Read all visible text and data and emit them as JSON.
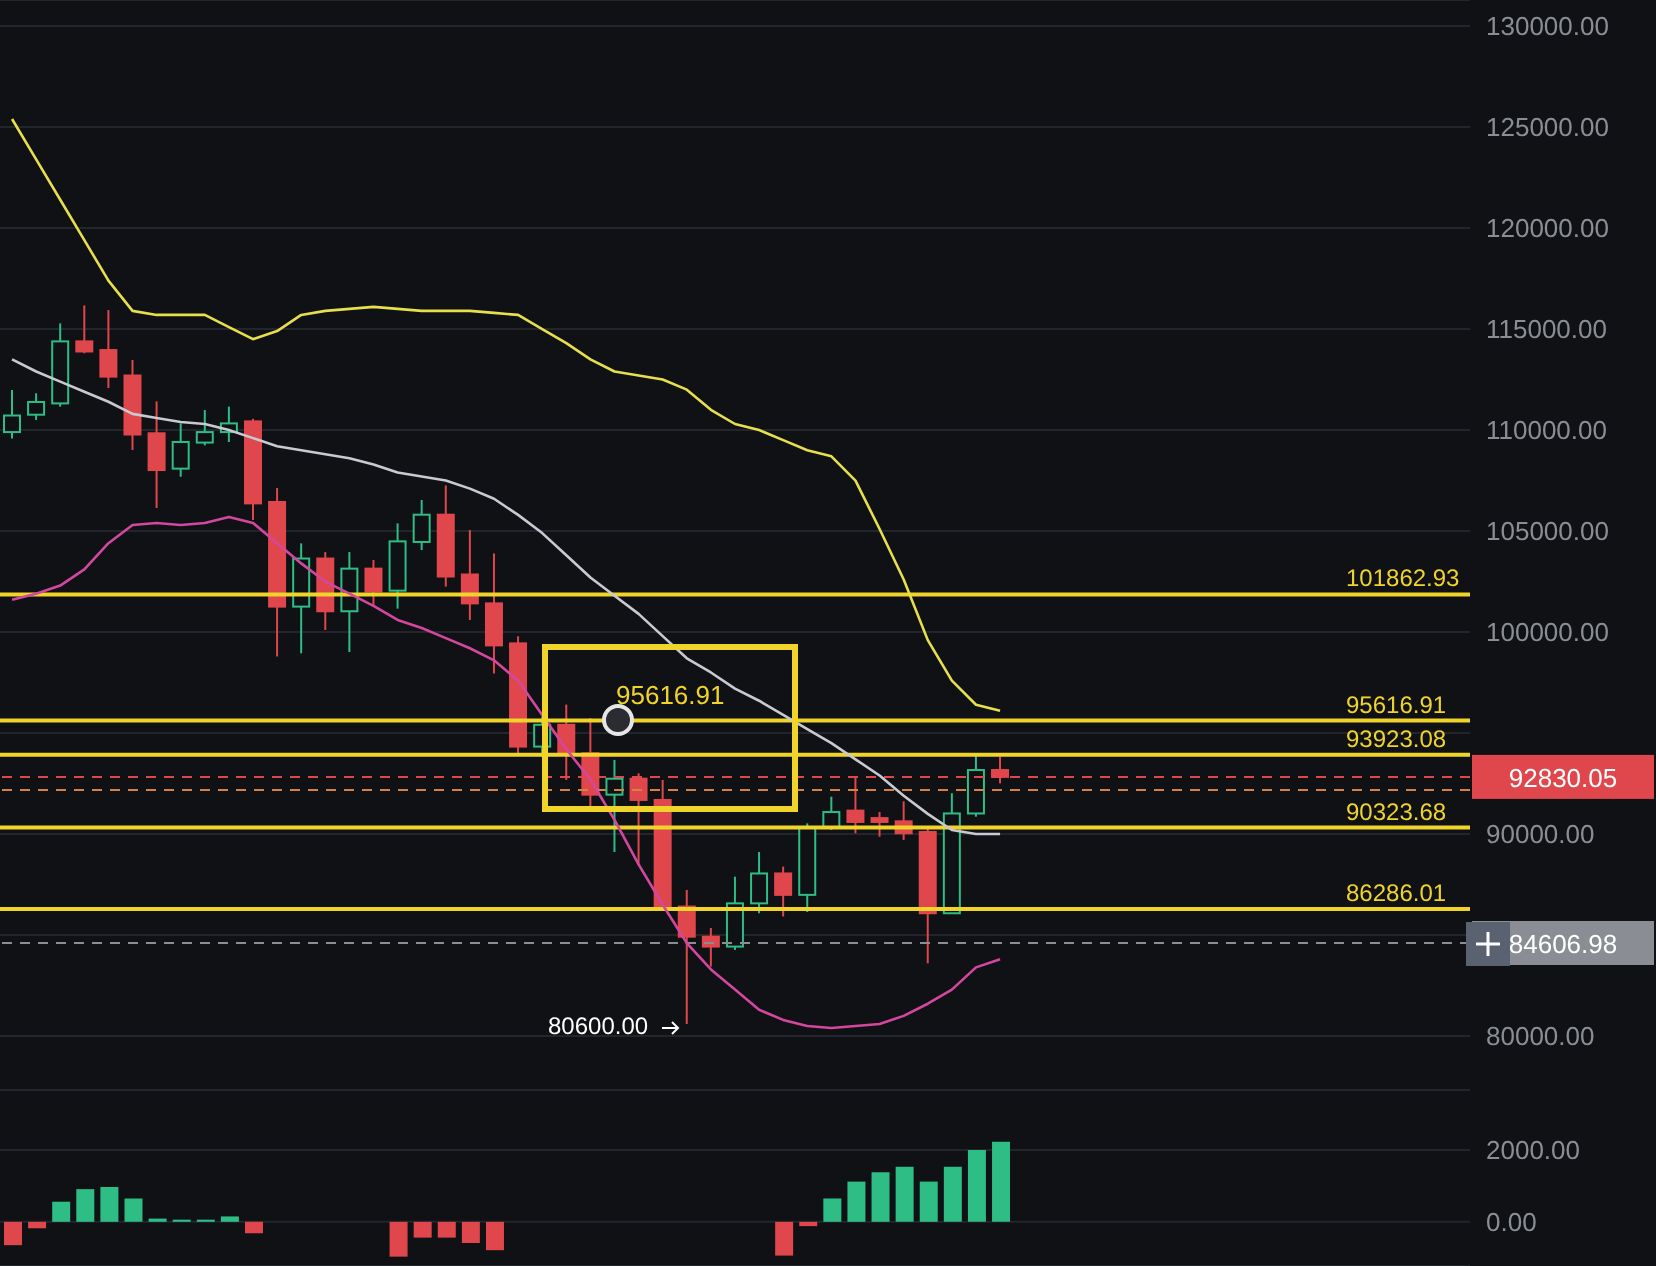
{
  "chart_data": [
    {
      "type": "candlestick",
      "categories": [
        null,
        null,
        null,
        null,
        null,
        null,
        null,
        null,
        null,
        null,
        null,
        null,
        null,
        null,
        null,
        null,
        null,
        null,
        null,
        null,
        null,
        null,
        null,
        null,
        null,
        null,
        null,
        null,
        null,
        null,
        null,
        null,
        null,
        null,
        null,
        null,
        null,
        null,
        null,
        null,
        null,
        null,
        null,
        null,
        null,
        null,
        null,
        null,
        null,
        null,
        null,
        null,
        null,
        null,
        null,
        null,
        null,
        null,
        null,
        null,
        null
      ],
      "ohlc": [
        [
          109900,
          111980,
          109580,
          110720
        ],
        [
          110760,
          111820,
          110500,
          111390
        ],
        [
          111320,
          115280,
          111160,
          114390
        ],
        [
          114390,
          116170,
          113800,
          113890
        ],
        [
          113960,
          115940,
          112080,
          112645
        ],
        [
          112700,
          113470,
          109010,
          109780
        ],
        [
          109840,
          111420,
          106140,
          108020
        ],
        [
          108090,
          110330,
          107690,
          109410
        ],
        [
          109380,
          110990,
          109240,
          109900
        ],
        [
          109900,
          111160,
          109410,
          110330
        ],
        [
          110430,
          110560,
          105550,
          106370
        ],
        [
          106440,
          107130,
          98790,
          101260
        ],
        [
          101260,
          104390,
          98950,
          103640
        ],
        [
          103640,
          103960,
          100100,
          101030
        ],
        [
          101030,
          103960,
          99010,
          103140
        ],
        [
          103140,
          103570,
          101260,
          102010
        ],
        [
          102050,
          105380,
          101160,
          104490
        ],
        [
          104460,
          106540,
          104060,
          105810
        ],
        [
          105810,
          107260,
          102250,
          102750
        ],
        [
          102850,
          105050,
          100600,
          101420
        ],
        [
          101420,
          103890,
          97950,
          99340
        ],
        [
          99440,
          99790,
          94000,
          94330
        ],
        [
          94330,
          95810,
          93830,
          95410
        ],
        [
          95410,
          96410,
          92680,
          93930
        ],
        [
          94000,
          95740,
          91090,
          91950
        ],
        [
          91950,
          93670,
          89110,
          92740
        ],
        [
          92740,
          93010,
          88450,
          91690
        ],
        [
          91690,
          92680,
          86300,
          86410
        ],
        [
          86410,
          87230,
          80600,
          84920
        ],
        [
          84920,
          85350,
          83440,
          84430
        ],
        [
          84430,
          87890,
          84260,
          86570
        ],
        [
          86570,
          89110,
          86080,
          88050
        ],
        [
          88050,
          88390,
          85920,
          86990
        ],
        [
          86990,
          90530,
          86140,
          90300
        ],
        [
          90300,
          91850,
          90200,
          91090
        ],
        [
          91160,
          92840,
          90040,
          90600
        ],
        [
          90790,
          91090,
          89870,
          90600
        ],
        [
          90630,
          91620,
          89710,
          90040
        ],
        [
          90100,
          90300,
          83600,
          86080
        ],
        [
          86080,
          92020,
          86080,
          91020
        ],
        [
          91020,
          93930,
          90860,
          93170
        ],
        [
          93170,
          93830,
          92510,
          92830.05
        ],
        null,
        null,
        null,
        null,
        null,
        null,
        null,
        null,
        null,
        null,
        null,
        null,
        null,
        null,
        null,
        null,
        null,
        null,
        null
      ],
      "series": [
        {
          "type": "line",
          "color": "#e8df4c",
          "values": [
            125400,
            123400,
            121400,
            119400,
            117400,
            115900,
            115700,
            115700,
            115700,
            115100,
            114500,
            114900,
            115700,
            115900,
            116000,
            116100,
            116000,
            115900,
            115900,
            115900,
            115800,
            115700,
            115000,
            114300,
            113500,
            112900,
            112700,
            112500,
            112000,
            111000,
            110300,
            110000,
            109500,
            109000,
            108700,
            107500,
            105100,
            102600,
            99600,
            97600,
            96400,
            96100,
            null,
            null,
            null,
            null,
            null,
            null,
            null,
            null,
            null,
            null,
            null,
            null,
            null,
            null,
            null,
            null,
            null,
            null,
            null
          ]
        },
        {
          "type": "line",
          "color": "#c9c9d1",
          "values": [
            113500,
            112900,
            112400,
            111900,
            111400,
            110800,
            110600,
            110400,
            110300,
            110000,
            109600,
            109200,
            109000,
            108800,
            108600,
            108300,
            107900,
            107700,
            107500,
            107100,
            106600,
            105800,
            104900,
            103800,
            102700,
            101800,
            100900,
            99800,
            98700,
            98000,
            97200,
            96600,
            95900,
            95200,
            94500,
            93700,
            92900,
            91900,
            91000,
            90200,
            90000,
            90000,
            null,
            null,
            null,
            null,
            null,
            null,
            null,
            null,
            null,
            null,
            null,
            null,
            null,
            null,
            null,
            null,
            null,
            null,
            null
          ]
        },
        {
          "type": "line",
          "color": "#d4479f",
          "values": [
            101600,
            101900,
            102300,
            103100,
            104400,
            105300,
            105400,
            105300,
            105400,
            105700,
            105400,
            104400,
            103400,
            102500,
            101900,
            101300,
            100600,
            100200,
            99700,
            99200,
            98600,
            97600,
            95900,
            94200,
            92700,
            90700,
            88500,
            86500,
            84600,
            83300,
            82300,
            81300,
            80800,
            80500,
            80400,
            80500,
            80600,
            81000,
            81600,
            82300,
            83400,
            83800,
            null,
            null,
            null,
            null,
            null,
            null,
            null,
            null,
            null,
            null,
            null,
            null,
            null,
            null,
            null,
            null,
            null,
            null,
            null
          ]
        }
      ],
      "ylim": [
        77330,
        131290
      ],
      "yticks": [
        {
          "value": 80000,
          "label": "80000.00"
        },
        {
          "value": 85000,
          "label": null
        },
        {
          "value": 90000,
          "label": "90000.00"
        },
        {
          "value": 95000,
          "label": null
        },
        {
          "value": 100000,
          "label": "100000.00"
        },
        {
          "value": 105000,
          "label": "105000.00"
        },
        {
          "value": 110000,
          "label": "110000.00"
        },
        {
          "value": 115000,
          "label": "115000.00"
        },
        {
          "value": 120000,
          "label": "120000.00"
        },
        {
          "value": 125000,
          "label": "125000.00"
        },
        {
          "value": 130000,
          "label": "130000.00"
        }
      ],
      "grid": "y",
      "tick_labels": "y",
      "ref_lines": [
        {
          "axis": "y",
          "value": 101862.93,
          "label": "101862.93",
          "color": "#f0d42a"
        },
        {
          "axis": "y",
          "value": 95616.91,
          "label": "95616.91",
          "color": "#f0d42a"
        },
        {
          "axis": "y",
          "value": 93923.08,
          "label": "93923.08",
          "color": "#f0d42a"
        },
        {
          "axis": "y",
          "value": 90323.68,
          "label": "90323.68",
          "color": "#f0d42a"
        },
        {
          "axis": "y",
          "value": 86286.01,
          "label": "86286.01",
          "color": "#f0d42a"
        },
        {
          "axis": "y",
          "value": 92830.05,
          "label": "92830.05",
          "color": "#e0474c",
          "line_style": "dashed"
        },
        {
          "axis": "y",
          "value": 92180,
          "label": null,
          "color": "#d9823b",
          "line_style": "dashed"
        },
        {
          "axis": "y",
          "value": 84606.98,
          "label": "84606.98",
          "color": "#8a8d93",
          "line_style": "dashed"
        }
      ],
      "annotations": [
        "95616.91",
        "80600.00"
      ]
    },
    {
      "type": "bar",
      "categories": [
        null,
        null,
        null,
        null,
        null,
        null,
        null,
        null,
        null,
        null,
        null,
        null,
        null,
        null,
        null,
        null,
        null,
        null,
        null,
        null,
        null,
        null,
        null,
        null,
        null,
        null,
        null,
        null,
        null,
        null,
        null,
        null,
        null,
        null,
        null,
        null,
        null,
        null,
        null,
        null,
        null,
        null,
        null,
        null,
        null,
        null,
        null,
        null,
        null,
        null,
        null,
        null,
        null,
        null,
        null,
        null,
        null,
        null,
        null,
        null,
        null
      ],
      "values": [
        -650,
        -180,
        560,
        910,
        970,
        650,
        90,
        60,
        60,
        150,
        -320,
        null,
        null,
        null,
        null,
        null,
        -970,
        -440,
        -440,
        -590,
        -790,
        null,
        null,
        null,
        null,
        null,
        null,
        null,
        null,
        null,
        null,
        null,
        -940,
        -120,
        650,
        1120,
        1380,
        1530,
        1120,
        1530,
        2000,
        2230,
        null,
        null,
        null,
        null,
        null,
        null,
        null,
        null,
        null,
        null,
        null,
        null,
        null,
        null,
        null,
        null,
        null,
        null,
        null
      ],
      "colors": [
        "#e0474c",
        "#e0474c",
        "#2ebd85",
        "#2ebd85",
        "#2ebd85",
        "#2ebd85",
        "#2ebd85",
        "#2ebd85",
        "#2ebd85",
        "#2ebd85",
        "#e0474c",
        "#e0474c",
        "#e0474c",
        "#e0474c",
        "#e0474c",
        "#e0474c",
        "#e0474c",
        "#e0474c",
        "#e0474c",
        "#e0474c",
        "#e0474c",
        "#e0474c",
        "#e0474c",
        "#e0474c",
        "#e0474c",
        "#e0474c",
        "#e0474c",
        "#e0474c",
        "#e0474c",
        "#e0474c",
        "#e0474c",
        "#e0474c",
        "#e0474c",
        "#e0474c",
        "#2ebd85",
        "#2ebd85",
        "#2ebd85",
        "#2ebd85",
        "#2ebd85",
        "#2ebd85",
        "#2ebd85",
        "#2ebd85",
        null,
        null,
        null,
        null,
        null,
        null,
        null,
        null,
        null,
        null,
        null,
        null,
        null,
        null,
        null,
        null,
        null,
        null,
        null
      ],
      "ylim": [
        -1230,
        3670
      ],
      "yticks": [
        {
          "value": 0,
          "label": "0.00"
        },
        {
          "value": 2000,
          "label": "2000.00"
        }
      ],
      "grid": "y",
      "tick_labels": "y"
    }
  ]
}
